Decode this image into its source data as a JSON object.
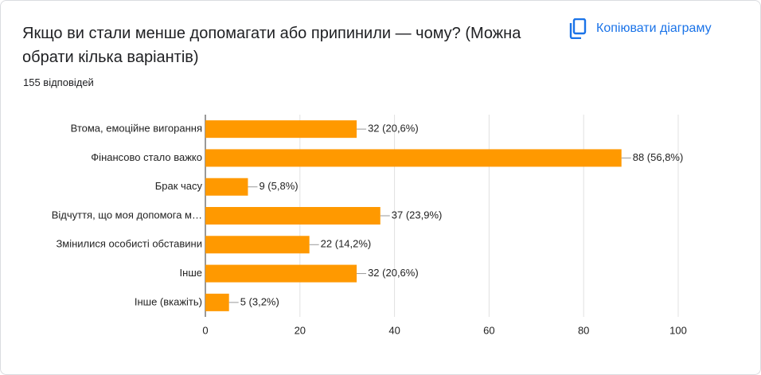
{
  "chart_data": {
    "type": "bar",
    "orientation": "horizontal",
    "title": "Якщо ви стали менше допомагати або припинили — чому? (Можна обрати кілька варіантів)",
    "subtitle": "155 відповідей",
    "button": "Копіювати діаграму",
    "categories": [
      "Втома, емоційне вигорання",
      "Фінансово стало важко",
      "Брак часу",
      "Відчуття, що моя допомога м…",
      "Змінилися особисті обставини",
      "Інше",
      "Інше (вкажіть)"
    ],
    "values": [
      32,
      88,
      9,
      37,
      22,
      32,
      5
    ],
    "value_labels": [
      "32 (20,6%)",
      "88 (56,8%)",
      "9 (5,8%)",
      "37 (23,9%)",
      "22 (14,2%)",
      "32 (20,6%)",
      "5 (3,2%)"
    ],
    "color": "#ff9900",
    "xlim": [
      0,
      100
    ],
    "xticks": [
      0,
      20,
      40,
      60,
      80,
      100
    ],
    "grid": true
  }
}
